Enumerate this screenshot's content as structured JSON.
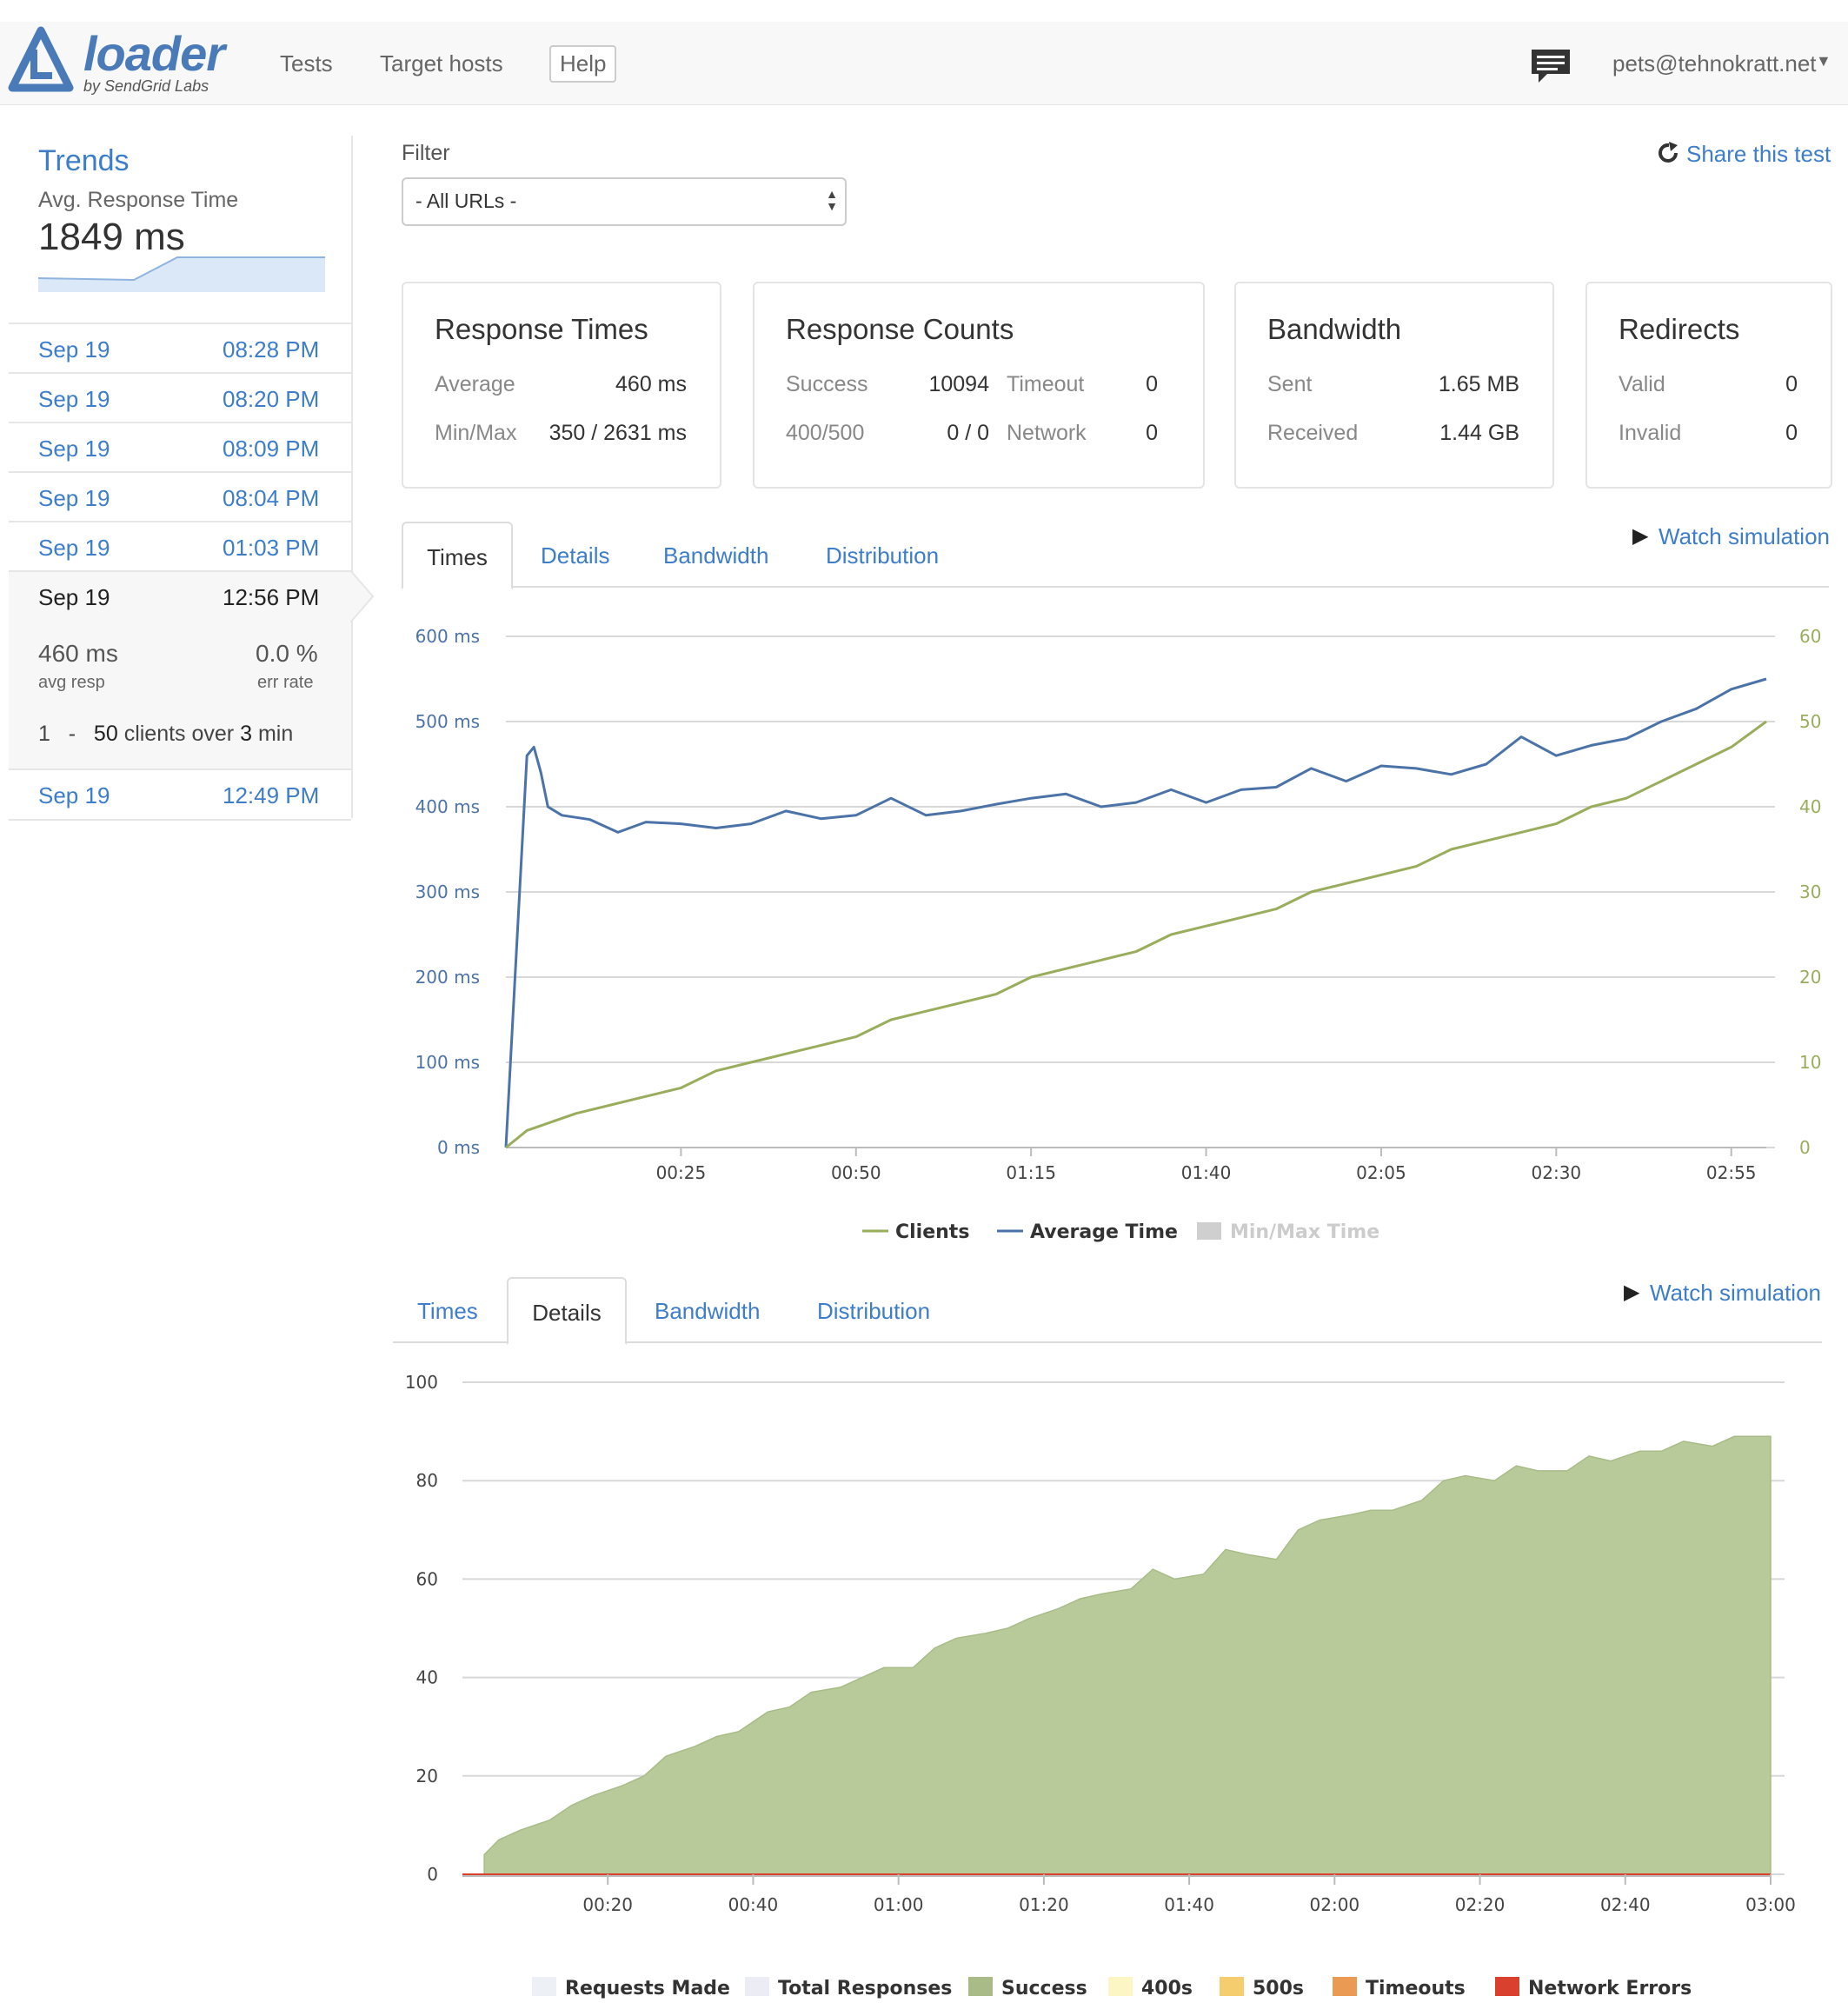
{
  "navbar": {
    "logo": "loader",
    "logo_sub": "by SendGrid Labs",
    "links": [
      "Tests",
      "Target hosts"
    ],
    "help": "Help",
    "user": "pets@tehnokratt.net"
  },
  "sidebar": {
    "trends_title": "Trends",
    "avg_label": "Avg. Response Time",
    "avg_value": "1849 ms",
    "runs_top": [
      {
        "date": "Sep 19",
        "time": "08:28 PM"
      },
      {
        "date": "Sep 19",
        "time": "08:20 PM"
      },
      {
        "date": "Sep 19",
        "time": "08:09 PM"
      },
      {
        "date": "Sep 19",
        "time": "08:04 PM"
      },
      {
        "date": "Sep 19",
        "time": "01:03 PM"
      }
    ],
    "selected": {
      "date": "Sep 19",
      "time": "12:56 PM",
      "avg_resp": "460 ms",
      "avg_resp_label": "avg resp",
      "err_rate": "0.0 %",
      "err_rate_label": "err rate",
      "clients_from": "1",
      "dash": "-",
      "clients_to": "50",
      "clients_mid": "clients over",
      "duration": "3",
      "duration_unit": "min"
    },
    "runs_bottom": [
      {
        "date": "Sep 19",
        "time": "12:49 PM"
      }
    ]
  },
  "filter": {
    "label": "Filter",
    "value": "- All URLs -"
  },
  "share": "Share this test",
  "stats": {
    "response_times": {
      "title": "Response Times",
      "average_label": "Average",
      "average": "460 ms",
      "minmax_label": "Min/Max",
      "minmax": "350 / 2631 ms"
    },
    "response_counts": {
      "title": "Response Counts",
      "success_label": "Success",
      "success": "10094",
      "timeout_label": "Timeout",
      "timeout": "0",
      "errors_label": "400/500",
      "errors": "0 / 0",
      "network_label": "Network",
      "network": "0"
    },
    "bandwidth": {
      "title": "Bandwidth",
      "sent_label": "Sent",
      "sent": "1.65 MB",
      "received_label": "Received",
      "received": "1.44 GB"
    },
    "redirects": {
      "title": "Redirects",
      "valid_label": "Valid",
      "valid": "0",
      "invalid_label": "Invalid",
      "invalid": "0"
    }
  },
  "tabs": [
    "Times",
    "Details",
    "Bandwidth",
    "Distribution"
  ],
  "watch": "Watch simulation",
  "colors": {
    "clients": "#99ad5c",
    "avg_time": "#4c73a8",
    "success": "#b8c99a",
    "network": "#d9402d"
  },
  "chart_data": [
    {
      "type": "line",
      "x_ticks": [
        "00:25",
        "00:50",
        "01:15",
        "01:40",
        "02:05",
        "02:30",
        "02:55"
      ],
      "y_left_ticks": [
        "0 ms",
        "100 ms",
        "200 ms",
        "300 ms",
        "400 ms",
        "500 ms",
        "600 ms"
      ],
      "y_right_ticks": [
        "0",
        "10",
        "20",
        "30",
        "40",
        "50",
        "60"
      ],
      "ylim_left": [
        0,
        600
      ],
      "ylim_right": [
        0,
        60
      ],
      "xlim_seconds": [
        0,
        180
      ],
      "legend": [
        "Clients",
        "Average Time",
        "Min/Max Time"
      ],
      "series": [
        {
          "name": "Average Time",
          "axis": "left",
          "x": [
            0,
            3,
            4,
            5,
            6,
            8,
            12,
            16,
            20,
            25,
            30,
            35,
            40,
            45,
            50,
            55,
            60,
            65,
            70,
            75,
            80,
            85,
            90,
            95,
            100,
            105,
            110,
            115,
            120,
            125,
            130,
            135,
            140,
            145,
            150,
            155,
            160,
            165,
            170,
            175,
            180
          ],
          "y": [
            0,
            460,
            470,
            440,
            400,
            390,
            385,
            370,
            382,
            380,
            375,
            380,
            395,
            386,
            390,
            410,
            390,
            395,
            403,
            410,
            415,
            400,
            405,
            420,
            405,
            420,
            423,
            445,
            430,
            448,
            445,
            438,
            450,
            482,
            460,
            472,
            480,
            500,
            515,
            538,
            550
          ]
        },
        {
          "name": "Clients",
          "axis": "right",
          "x": [
            0,
            3,
            10,
            15,
            20,
            25,
            30,
            35,
            40,
            45,
            50,
            55,
            60,
            65,
            70,
            75,
            80,
            85,
            90,
            95,
            100,
            105,
            110,
            115,
            120,
            125,
            130,
            135,
            140,
            145,
            150,
            155,
            160,
            165,
            170,
            175,
            180
          ],
          "y": [
            0,
            2,
            4,
            5,
            6,
            7,
            9,
            10,
            11,
            12,
            13,
            15,
            16,
            17,
            18,
            20,
            21,
            22,
            23,
            25,
            26,
            27,
            28,
            30,
            31,
            32,
            33,
            35,
            36,
            37,
            38,
            40,
            41,
            43,
            45,
            47,
            50
          ]
        }
      ]
    },
    {
      "type": "area",
      "x_ticks": [
        "00:20",
        "00:40",
        "01:00",
        "01:20",
        "01:40",
        "02:00",
        "02:20",
        "02:40",
        "03:00"
      ],
      "y_ticks": [
        "0",
        "20",
        "40",
        "60",
        "80",
        "100"
      ],
      "ylim": [
        0,
        100
      ],
      "xlim_seconds": [
        0,
        180
      ],
      "legend": [
        "Requests Made",
        "Total Responses",
        "Success",
        "400s",
        "500s",
        "Timeouts",
        "Network Errors"
      ],
      "series": [
        {
          "name": "Success",
          "x": [
            3,
            5,
            8,
            12,
            15,
            18,
            22,
            25,
            28,
            32,
            35,
            38,
            42,
            45,
            48,
            52,
            55,
            58,
            62,
            65,
            68,
            72,
            75,
            78,
            82,
            85,
            88,
            92,
            95,
            98,
            102,
            105,
            108,
            112,
            115,
            118,
            122,
            125,
            128,
            132,
            135,
            138,
            142,
            145,
            148,
            152,
            155,
            158,
            162,
            165,
            168,
            172,
            175,
            178,
            180
          ],
          "y": [
            4,
            7,
            9,
            11,
            14,
            16,
            18,
            20,
            24,
            26,
            28,
            29,
            33,
            34,
            37,
            38,
            40,
            42,
            42,
            46,
            48,
            49,
            50,
            52,
            54,
            56,
            57,
            58,
            62,
            60,
            61,
            66,
            65,
            64,
            70,
            72,
            73,
            74,
            74,
            76,
            80,
            81,
            80,
            83,
            82,
            82,
            85,
            84,
            86,
            86,
            88,
            87,
            89,
            89,
            89
          ]
        },
        {
          "name": "Network Errors",
          "x": [
            0,
            180
          ],
          "y": [
            0,
            0
          ]
        }
      ]
    }
  ]
}
